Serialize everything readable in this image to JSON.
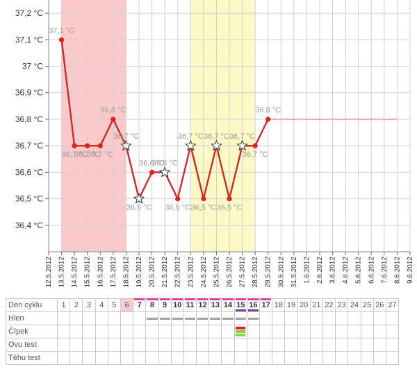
{
  "colors": {
    "line": "#cc2a2a",
    "point": "#dd2222",
    "red_band": "#fbc9c9",
    "yellow_band": "#fdf9c6",
    "grid": "#d0d0d0",
    "label": "#9a9a9a",
    "axis_text": "#333333",
    "dashed": "#cc3333",
    "star_stroke": "#333333"
  },
  "chart_data": {
    "type": "line",
    "title": "",
    "xlabel": "",
    "ylabel": "",
    "grid": true,
    "ylim": [
      36.3,
      37.25
    ],
    "y_ticks": [
      "37,2 °C",
      "37,1 °C",
      "37 °C",
      "36,9 °C",
      "36,8 °C",
      "36,7 °C",
      "36,6 °C",
      "36,5 °C",
      "36,4 °C"
    ],
    "y_tick_values": [
      37.2,
      37.1,
      37.0,
      36.9,
      36.8,
      36.7,
      36.6,
      36.5,
      36.4
    ],
    "x_dates": [
      "12.5.2012",
      "13.5.2012",
      "14.5.2012",
      "15.5.2012",
      "16.5.2012",
      "17.5.2012",
      "18.5.2012",
      "19.5.2012",
      "20.5.2012",
      "21.5.2012",
      "22.5.2012",
      "23.5.2012",
      "24.5.2012",
      "25.5.2012",
      "26.5.2012",
      "27.5.2012",
      "28.5.2012",
      "29.5.2012",
      "30.5.2012",
      "31.5.2012",
      "1.6.2012",
      "2.6.2012",
      "3.6.2012",
      "4.6.2012",
      "5.6.2012",
      "6.6.2012",
      "7.6.2012",
      "8.6.2012",
      "9.6.2012"
    ],
    "red_band": [
      "13.5.2012",
      "18.5.2012"
    ],
    "yellow_band": [
      "23.5.2012",
      "28.5.2012"
    ],
    "series": [
      {
        "points": [
          {
            "date": "13.5.2012",
            "value": 37.1,
            "label": "37,1 °C",
            "marker": "dot"
          },
          {
            "date": "14.5.2012",
            "value": 36.7,
            "label": "36,7 °C",
            "marker": "dot"
          },
          {
            "date": "15.5.2012",
            "value": 36.7,
            "label": "36,7 °C",
            "marker": "dot"
          },
          {
            "date": "16.5.2012",
            "value": 36.7,
            "label": "36,7 °C",
            "marker": "dot"
          },
          {
            "date": "17.5.2012",
            "value": 36.8,
            "label": "36,8 °C",
            "marker": "dot"
          },
          {
            "date": "18.5.2012",
            "value": 36.7,
            "label": "36,7 °C",
            "marker": "star"
          },
          {
            "date": "19.5.2012",
            "value": 36.5,
            "label": "36,5 °C",
            "marker": "star"
          },
          {
            "date": "20.5.2012",
            "value": 36.6,
            "label": "36,6 °C",
            "marker": "dot"
          },
          {
            "date": "21.5.2012",
            "value": 36.6,
            "label": "36,6 °C",
            "marker": "star"
          },
          {
            "date": "22.5.2012",
            "value": 36.5,
            "label": "36,5 °C",
            "marker": "dot"
          },
          {
            "date": "23.5.2012",
            "value": 36.7,
            "label": "36,7 °C",
            "marker": "star"
          },
          {
            "date": "24.5.2012",
            "value": 36.5,
            "label": "36,5 °C",
            "marker": "dot"
          },
          {
            "date": "25.5.2012",
            "value": 36.7,
            "label": "36,7 °C",
            "marker": "star"
          },
          {
            "date": "26.5.2012",
            "value": 36.5,
            "label": "36,5 °C",
            "marker": "dot"
          },
          {
            "date": "27.5.2012",
            "value": 36.7,
            "label": "36,7 °C",
            "marker": "star"
          },
          {
            "date": "28.5.2012",
            "value": 36.7,
            "label": "36,7 °C",
            "marker": "dot"
          },
          {
            "date": "29.5.2012",
            "value": 36.8,
            "label": "36,8 °C",
            "marker": "dot"
          }
        ],
        "extension": {
          "from": "29.5.2012",
          "to": "8.6.2012",
          "value": 36.8,
          "style": "dashed"
        }
      }
    ]
  },
  "cycle_table": {
    "rows": [
      {
        "key": "day",
        "label": "Den cyklu"
      },
      {
        "key": "mucus",
        "label": "Hlen"
      },
      {
        "key": "cervix",
        "label": "Čípek"
      },
      {
        "key": "ovu",
        "label": "Ovu test"
      },
      {
        "key": "preg",
        "label": "Těhu test"
      }
    ],
    "days": [
      "1",
      "2",
      "3",
      "4",
      "5",
      "6",
      "7",
      "8",
      "9",
      "10",
      "11",
      "12",
      "13",
      "14",
      "15",
      "16",
      "17",
      "18",
      "19",
      "20",
      "21",
      "22",
      "23",
      "24",
      "25",
      "26",
      "27"
    ],
    "red_days": [
      6
    ],
    "highlight_days": [
      7,
      8,
      9,
      10,
      11,
      12,
      13,
      14,
      15,
      16,
      17
    ],
    "top_bar_days": [
      7,
      8,
      9,
      10,
      11,
      12,
      13,
      14,
      15,
      16,
      17
    ],
    "bottom_bar_days": [
      15,
      16
    ],
    "mucus_days": [
      8,
      9,
      10,
      11,
      12,
      13,
      14,
      15,
      16
    ],
    "cervix_day": 15,
    "cervix_colors": [
      "#dd2222",
      "#8ed14a",
      "#8ed14a"
    ]
  }
}
